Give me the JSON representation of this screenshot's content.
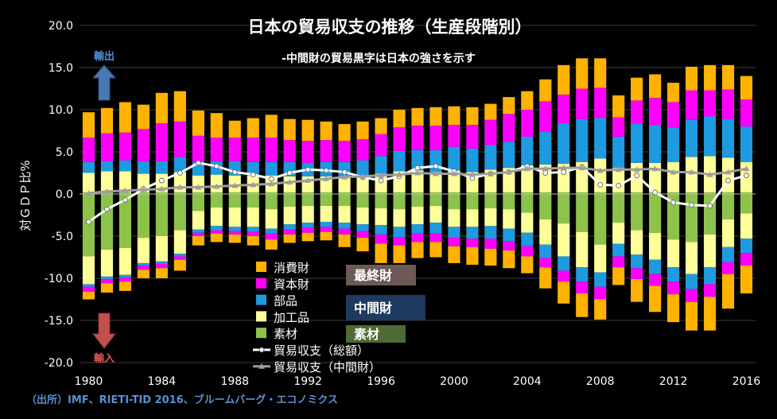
{
  "chart_data": {
    "type": "bar",
    "title": "日本の貿易収支の推移（生産段階別）",
    "subtitle": "-中間財の貿易黒字は日本の強さを示す",
    "ylabel": "対ＧＤＰ比%",
    "ylim": [
      -20,
      20
    ],
    "yticks": [
      "20.0",
      "15.0",
      "10.0",
      "5.0",
      "0.0",
      "-5.0",
      "-10.0",
      "-15.0",
      "-20.0"
    ],
    "xtick_labels": [
      "1980",
      "1984",
      "1988",
      "1992",
      "1996",
      "2000",
      "2004",
      "2008",
      "2012",
      "2016"
    ],
    "categories": [
      1980,
      1981,
      1982,
      1983,
      1984,
      1985,
      1986,
      1987,
      1988,
      1989,
      1990,
      1991,
      1992,
      1993,
      1994,
      1995,
      1996,
      1997,
      1998,
      1999,
      2000,
      2001,
      2002,
      2003,
      2004,
      2005,
      2006,
      2007,
      2008,
      2009,
      2010,
      2011,
      2012,
      2013,
      2014,
      2015,
      2016
    ],
    "exports": [
      {
        "name": "素材",
        "color": "#8dc34a",
        "values": [
          0.2,
          0.2,
          0.2,
          0.2,
          0.2,
          0.2,
          0.2,
          0.2,
          0.2,
          0.2,
          0.2,
          0.2,
          0.2,
          0.2,
          0.2,
          0.2,
          0.2,
          0.2,
          0.2,
          0.2,
          0.2,
          0.2,
          0.2,
          0.2,
          0.2,
          0.2,
          0.2,
          0.2,
          0.2,
          0.2,
          0.2,
          0.2,
          0.2,
          0.2,
          0.2,
          0.2,
          0.2
        ]
      },
      {
        "name": "加工品",
        "color": "#ffff99",
        "values": [
          2.3,
          2.5,
          2.5,
          2.2,
          2.2,
          2.4,
          2.0,
          2.1,
          2.0,
          2.0,
          2.0,
          1.9,
          1.9,
          1.9,
          1.9,
          2.0,
          2.2,
          2.5,
          2.6,
          2.4,
          2.6,
          2.4,
          2.7,
          2.9,
          3.2,
          3.3,
          3.4,
          3.6,
          4.0,
          2.9,
          3.5,
          3.5,
          3.6,
          4.2,
          4.3,
          4.1,
          3.6
        ]
      },
      {
        "name": "部品",
        "color": "#1e9ae0",
        "values": [
          1.3,
          1.2,
          1.3,
          1.5,
          1.5,
          1.8,
          1.6,
          1.6,
          1.7,
          1.6,
          1.6,
          1.7,
          1.6,
          1.7,
          1.7,
          1.8,
          2.1,
          2.4,
          2.4,
          2.6,
          2.8,
          2.8,
          2.9,
          3.1,
          3.4,
          3.9,
          4.8,
          5.1,
          4.8,
          3.7,
          4.6,
          4.5,
          4.1,
          4.4,
          4.7,
          4.6,
          4.2
        ]
      },
      {
        "name": "資本財",
        "color": "#ff00ff",
        "values": [
          2.9,
          3.3,
          3.3,
          3.8,
          4.5,
          4.2,
          3.1,
          2.8,
          2.8,
          2.9,
          2.9,
          2.6,
          2.6,
          2.6,
          2.5,
          2.5,
          2.6,
          2.8,
          2.9,
          2.9,
          2.6,
          2.8,
          3.0,
          3.3,
          3.2,
          3.6,
          3.4,
          3.6,
          3.6,
          2.3,
          2.8,
          3.2,
          3.0,
          3.5,
          3.1,
          3.5,
          3.2
        ]
      },
      {
        "name": "消費財",
        "color": "#ffb300",
        "values": [
          3.0,
          3.0,
          3.6,
          2.9,
          3.6,
          3.6,
          3.0,
          2.9,
          2.0,
          2.3,
          2.7,
          2.5,
          2.5,
          2.2,
          2.0,
          2.1,
          1.9,
          2.1,
          2.1,
          2.2,
          2.2,
          2.1,
          1.9,
          2.0,
          2.2,
          2.6,
          3.5,
          3.6,
          3.5,
          2.6,
          2.7,
          2.8,
          2.3,
          2.8,
          3.0,
          2.9,
          2.8
        ]
      }
    ],
    "imports": [
      {
        "name": "素材",
        "color": "#8dc34a",
        "values": [
          7.4,
          6.6,
          6.4,
          5.2,
          5.0,
          4.3,
          2.0,
          1.6,
          1.6,
          1.6,
          1.8,
          1.5,
          1.4,
          1.4,
          1.4,
          1.6,
          1.7,
          1.8,
          1.5,
          1.4,
          1.8,
          1.8,
          1.7,
          1.8,
          2.2,
          3.0,
          3.5,
          4.5,
          6.0,
          3.4,
          4.3,
          4.6,
          5.4,
          5.7,
          4.8,
          3.0,
          2.3
        ]
      },
      {
        "name": "加工品",
        "color": "#ffff99",
        "values": [
          3.3,
          3.2,
          3.2,
          3.0,
          3.0,
          2.8,
          2.2,
          2.2,
          2.3,
          2.3,
          2.3,
          2.1,
          2.0,
          1.9,
          2.0,
          2.0,
          2.0,
          2.1,
          2.1,
          2.0,
          2.1,
          2.1,
          2.1,
          2.3,
          2.4,
          3.0,
          3.9,
          4.2,
          3.3,
          2.5,
          2.9,
          3.2,
          3.3,
          3.8,
          3.9,
          3.3,
          3.0
        ]
      },
      {
        "name": "部品",
        "color": "#1e9ae0",
        "values": [
          0.3,
          0.3,
          0.3,
          0.3,
          0.3,
          0.3,
          0.4,
          0.5,
          0.5,
          0.6,
          0.6,
          0.6,
          0.6,
          0.6,
          0.7,
          0.8,
          1.1,
          1.2,
          1.1,
          1.3,
          1.3,
          1.4,
          1.5,
          1.5,
          1.6,
          1.6,
          1.7,
          1.7,
          1.7,
          1.5,
          1.6,
          1.7,
          1.7,
          1.8,
          2.0,
          1.8,
          1.7
        ]
      },
      {
        "name": "資本財",
        "color": "#ff00ff",
        "values": [
          0.6,
          0.5,
          0.5,
          0.5,
          0.5,
          0.4,
          0.4,
          0.4,
          0.4,
          0.5,
          0.7,
          0.6,
          0.6,
          0.6,
          0.7,
          0.8,
          1.1,
          1.0,
          1.0,
          1.0,
          1.0,
          1.0,
          1.2,
          1.1,
          1.2,
          1.1,
          1.3,
          1.4,
          1.5,
          1.3,
          1.3,
          1.4,
          1.5,
          1.5,
          1.5,
          1.4,
          1.5
        ]
      },
      {
        "name": "消費財",
        "color": "#ffb300",
        "values": [
          0.9,
          1.1,
          1.1,
          1.0,
          1.2,
          1.3,
          1.1,
          1.0,
          1.0,
          1.1,
          1.2,
          1.0,
          1.0,
          1.0,
          1.5,
          1.6,
          2.3,
          2.1,
          1.9,
          1.8,
          2.0,
          2.1,
          2.0,
          2.1,
          2.0,
          2.5,
          2.6,
          2.8,
          2.4,
          2.1,
          2.7,
          3.1,
          3.3,
          3.4,
          4.0,
          4.1,
          3.3
        ]
      }
    ],
    "series": [
      {
        "name": "貿易収支（総額）",
        "color": "#ffffff",
        "marker": "circle",
        "values": [
          -3.3,
          -1.8,
          -0.7,
          0.6,
          1.6,
          2.5,
          3.7,
          3.3,
          2.6,
          2.3,
          1.8,
          2.5,
          2.9,
          2.8,
          2.6,
          2.0,
          1.6,
          2.1,
          3.1,
          3.3,
          2.7,
          1.9,
          2.4,
          2.6,
          3.3,
          2.5,
          2.6,
          3.2,
          1.1,
          1.0,
          2.2,
          0.2,
          -1.0,
          -1.3,
          -1.4,
          1.6,
          2.2
        ]
      },
      {
        "name": "貿易収支（中間財）",
        "color": "#9e9e9e",
        "marker": "triangle",
        "values": [
          0.1,
          0.3,
          0.4,
          0.5,
          0.6,
          0.8,
          0.8,
          0.9,
          1.0,
          1.1,
          1.2,
          1.4,
          1.6,
          1.8,
          2.0,
          2.1,
          2.2,
          2.3,
          2.5,
          2.4,
          2.4,
          2.3,
          2.4,
          2.6,
          3.0,
          3.0,
          3.1,
          3.1,
          2.8,
          2.9,
          2.9,
          3.0,
          2.6,
          2.6,
          2.3,
          2.6,
          3.0
        ]
      }
    ],
    "legend": [
      "消費財",
      "資本財",
      "部品",
      "加工品",
      "素材",
      "貿易収支（総額）",
      "貿易収支（中間財）"
    ],
    "legend_position": "bottom-center",
    "group_labels": [
      {
        "text": "最終財",
        "color": "#6d5a56"
      },
      {
        "text": "中間財",
        "color": "#1f3a5f"
      },
      {
        "text": "素材",
        "color": "#4f6a34"
      }
    ],
    "annotations": {
      "export_label": "輸出",
      "import_label": "輸入"
    }
  },
  "source": "（出所）IMF、RIETI-TID 2016、ブルームバーグ・エコノミクス"
}
